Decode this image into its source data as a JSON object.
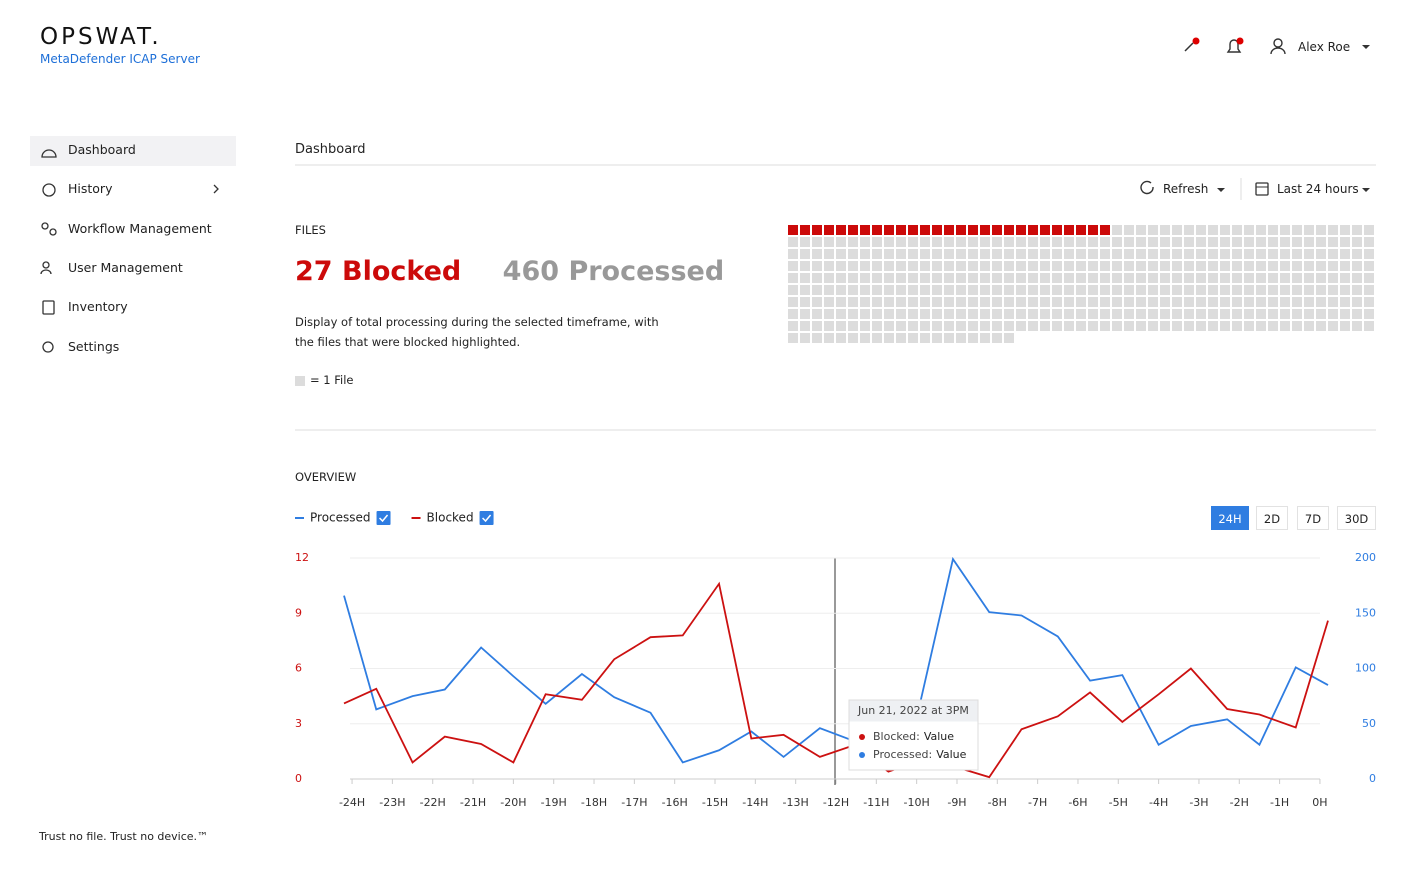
{
  "header": {
    "logo": "OPSWAT.",
    "product": "MetaDefender ICAP Server",
    "user": "Alex Roe"
  },
  "nav": {
    "items": [
      "Dashboard",
      "History",
      "Workflow Management",
      "User Management",
      "Inventory",
      "Settings"
    ],
    "active": 0,
    "footer": "Trust no file. Trust no device.™"
  },
  "page_title": "Dashboard",
  "toolbar": {
    "refresh": "Refresh",
    "range": "Last 24 hours"
  },
  "files": {
    "label": "FILES",
    "blocked": 27,
    "blocked_label": "Blocked",
    "processed": 460,
    "processed_label": "Processed",
    "description": "Display of total processing during the selected timeframe, with the files that were blocked highlighted.",
    "legend": "= 1 File",
    "blocked_color": "#cc0a0a",
    "processed_color": "#dcdcdc"
  },
  "overview": {
    "label": "OVERVIEW",
    "ranges": [
      "24H",
      "2D",
      "7D",
      "30D"
    ],
    "active_range": 0
  },
  "chart_data": {
    "type": "line",
    "x": [
      -24.2,
      -23.4,
      -22.5,
      -21.7,
      -20.8,
      -20.0,
      -19.2,
      -18.3,
      -17.5,
      -16.6,
      -15.8,
      -14.9,
      -14.1,
      -13.3,
      -12.4,
      -11.6,
      -10.7,
      -9.9,
      -9.1,
      -8.2,
      -7.4,
      -6.5,
      -5.7,
      -4.9,
      -4.0,
      -3.2,
      -2.3,
      -1.5,
      -0.6,
      0.2
    ],
    "xlim": [
      -24.2,
      0.2
    ],
    "xticks": [
      {
        "value": -24,
        "label": "-24H"
      },
      {
        "value": -23,
        "label": "-23H"
      },
      {
        "value": -22,
        "label": "-22H"
      },
      {
        "value": -21,
        "label": "-21H"
      },
      {
        "value": -20,
        "label": "-20H"
      },
      {
        "value": -19,
        "label": "-19H"
      },
      {
        "value": -18,
        "label": "-18H"
      },
      {
        "value": -17,
        "label": "-17H"
      },
      {
        "value": -16,
        "label": "-16H"
      },
      {
        "value": -15,
        "label": "-15H"
      },
      {
        "value": -14,
        "label": "-14H"
      },
      {
        "value": -13,
        "label": "-13H"
      },
      {
        "value": -12,
        "label": "-12H"
      },
      {
        "value": -11,
        "label": "-11H"
      },
      {
        "value": -10,
        "label": "-10H"
      },
      {
        "value": -9,
        "label": "-9H"
      },
      {
        "value": -8,
        "label": "-8H"
      },
      {
        "value": -7,
        "label": "-7H"
      },
      {
        "value": -6,
        "label": "-6H"
      },
      {
        "value": -5,
        "label": "-5H"
      },
      {
        "value": -4,
        "label": "-4H"
      },
      {
        "value": -3,
        "label": "-3H"
      },
      {
        "value": -2,
        "label": "-2H"
      },
      {
        "value": -1,
        "label": "-1H"
      },
      {
        "value": 0,
        "label": "0H"
      }
    ],
    "ylim": [
      0,
      12
    ],
    "yticks": [
      0,
      3,
      6,
      9,
      12
    ],
    "y2lim": [
      0,
      200
    ],
    "y2ticks": [
      0,
      50,
      100,
      150,
      200
    ],
    "grid": true,
    "series": [
      {
        "name": "Processed",
        "color": "#2f7de1",
        "axis": "y2",
        "values": [
          166,
          63,
          75,
          81,
          119,
          93,
          68,
          95,
          74,
          60,
          15,
          26,
          43,
          20,
          46,
          35,
          17,
          71,
          199,
          151,
          148,
          129,
          89,
          94,
          31,
          48,
          54,
          31,
          101,
          85
        ]
      },
      {
        "name": "Blocked",
        "color": "#cc1111",
        "values": [
          4.1,
          4.9,
          0.9,
          2.3,
          1.9,
          0.9,
          4.6,
          4.3,
          6.5,
          7.7,
          7.8,
          10.6,
          2.2,
          2.4,
          1.2,
          1.8,
          0.4,
          1.0,
          0.7,
          0.1,
          2.7,
          3.4,
          4.7,
          3.1,
          4.6,
          6.0,
          3.8,
          3.5,
          2.8,
          8.6
        ]
      }
    ],
    "tooltip": {
      "title": "Jun 21, 2022 at 3PM",
      "rows": [
        {
          "label": "Blocked:",
          "value": "Value"
        },
        {
          "label": "Processed:",
          "value": "Value"
        }
      ]
    }
  }
}
